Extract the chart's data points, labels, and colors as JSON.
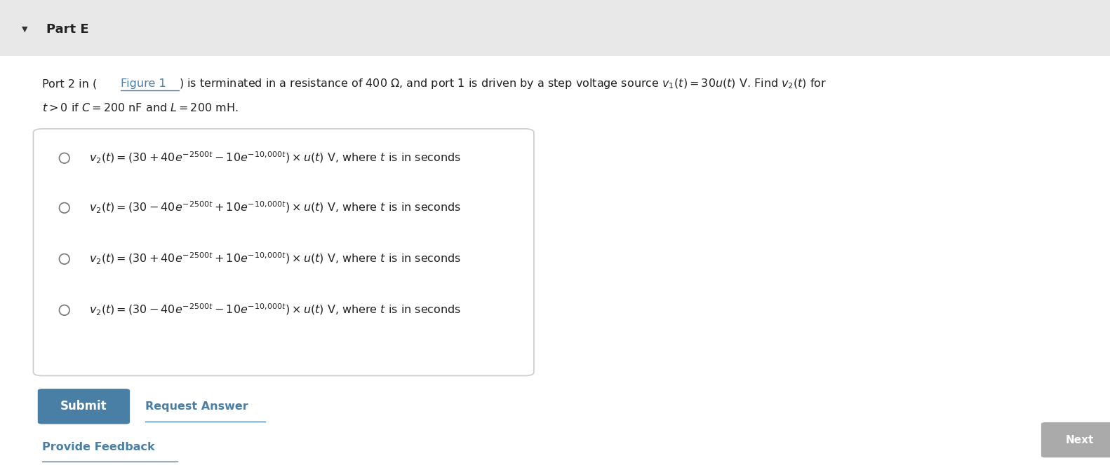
{
  "background_color": "#f5f5f5",
  "content_background": "#ffffff",
  "header_bar_color": "#e8e8e8",
  "box_border_color": "#cccccc",
  "triangle_color": "#333333",
  "text_color": "#222222",
  "link_color": "#4a7fa5",
  "submit_color": "#4a7fa5",
  "submit_text_color": "#ffffff",
  "provide_feedback_color": "#4a7fa5",
  "next_button_color": "#aaaaaa",
  "part_label": "Part E",
  "problem_line1_before_link": "Port 2 in (",
  "problem_line1_link": "Figure 1",
  "problem_line1_after_link": ") is terminated in a resistance of 400 Ω, and port 1 is driven by a step voltage source $v_1(t) = 30u(t)$ V. Find $v_2(t)$ for",
  "problem_line2": "$t > 0$ if $C = 200$ nF and $L = 200$ mH.",
  "options": [
    "$v_2(t) = (30 + 40e^{-2500t} - 10e^{-10{,}000t})\\times u(t)$ V, where $t$ is in seconds",
    "$v_2(t) = (30 - 40e^{-2500t} + 10e^{-10{,}000t})\\times u(t)$ V, where $t$ is in seconds",
    "$v_2(t) = (30 + 40e^{-2500t} + 10e^{-10{,}000t})\\times u(t)$ V, where $t$ is in seconds",
    "$v_2(t) = (30 - 40e^{-2500t} - 10e^{-10{,}000t})\\times u(t)$ V, where $t$ is in seconds"
  ],
  "submit_label": "Submit",
  "request_answer_label": "Request Answer",
  "provide_feedback_label": "Provide Feedback",
  "next_label": "Next"
}
